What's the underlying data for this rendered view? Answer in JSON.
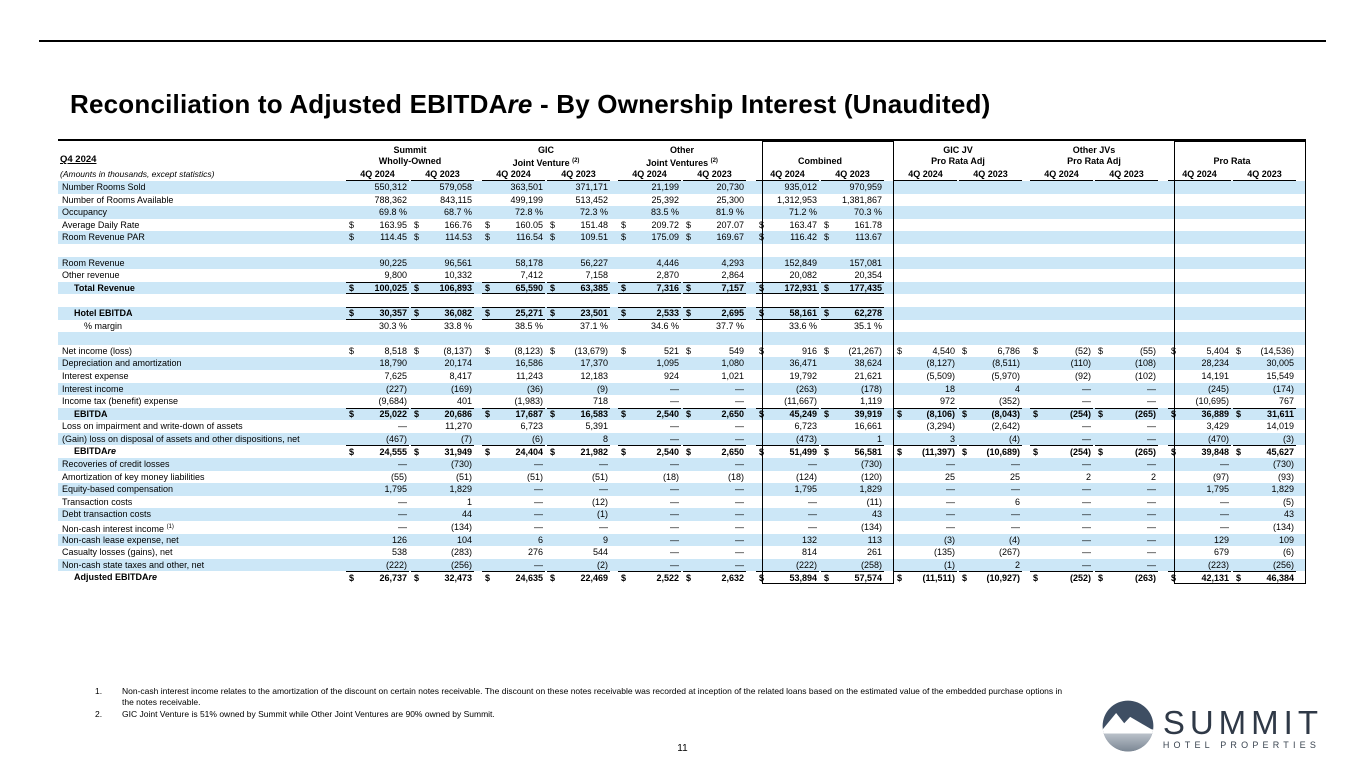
{
  "page": {
    "title": {
      "prefix": "Reconciliation to Adjusted EBITDA",
      "italic": "re",
      "suffix": " - By Ownership Interest (Unaudited)"
    },
    "page_number": "11"
  },
  "table": {
    "period_label": "Q4 2024",
    "subtitle": "(Amounts in thousands, except statistics)",
    "col_headers": [
      "4Q 2024",
      "4Q 2023"
    ],
    "groups": [
      {
        "line1": "Summit",
        "line2": "Wholly-Owned",
        "sup": "",
        "boxed": false
      },
      {
        "line1": "GIC",
        "line2": "Joint Venture",
        "sup": "(2)",
        "boxed": false
      },
      {
        "line1": "Other",
        "line2": "Joint Ventures",
        "sup": "(2)",
        "boxed": false
      },
      {
        "line1": "",
        "line2": "Combined",
        "sup": "",
        "boxed": true
      },
      {
        "line1": "GIC JV",
        "line2": "Pro Rata Adj",
        "sup": "",
        "boxed": false
      },
      {
        "line1": "Other JVs",
        "line2": "Pro Rata Adj",
        "sup": "",
        "boxed": false
      },
      {
        "line1": "",
        "line2": "Pro Rata",
        "sup": "",
        "boxed": true
      }
    ],
    "rows": [
      {
        "label": "Number Rooms Sold",
        "cells": [
          "550,312",
          "579,058",
          "363,501",
          "371,171",
          "21,199",
          "20,730",
          "935,012",
          "970,959",
          "",
          "",
          "",
          "",
          "",
          ""
        ]
      },
      {
        "label": "Number of Rooms Available",
        "cells": [
          "788,362",
          "843,115",
          "499,199",
          "513,452",
          "25,392",
          "25,300",
          "1,312,953",
          "1,381,867",
          "",
          "",
          "",
          "",
          "",
          ""
        ]
      },
      {
        "label": "Occupancy",
        "unit": "%",
        "cells": [
          "69.8",
          "68.7",
          "72.8",
          "72.3",
          "83.5",
          "81.9",
          "71.2",
          "70.3",
          "",
          "",
          "",
          "",
          "",
          ""
        ]
      },
      {
        "label": "Average Daily Rate",
        "unit": "$",
        "cells": [
          "163.95",
          "166.76",
          "160.05",
          "151.48",
          "209.72",
          "207.07",
          "163.47",
          "161.78",
          "",
          "",
          "",
          "",
          "",
          ""
        ]
      },
      {
        "label": "Room Revenue PAR",
        "unit": "$",
        "cells": [
          "114.45",
          "114.53",
          "116.54",
          "109.51",
          "175.09",
          "169.67",
          "116.42",
          "113.67",
          "",
          "",
          "",
          "",
          "",
          ""
        ]
      },
      {
        "blank": true
      },
      {
        "label": "Room Revenue",
        "cells": [
          "90,225",
          "96,561",
          "58,178",
          "56,227",
          "4,446",
          "4,293",
          "152,849",
          "157,081",
          "",
          "",
          "",
          "",
          "",
          ""
        ]
      },
      {
        "label": "Other revenue",
        "cells": [
          "9,800",
          "10,332",
          "7,412",
          "7,158",
          "2,870",
          "2,864",
          "20,082",
          "20,354",
          "",
          "",
          "",
          "",
          "",
          ""
        ]
      },
      {
        "label": "Total Revenue",
        "bold": true,
        "indent": 1,
        "unit": "$",
        "top": true,
        "bottom": true,
        "cells": [
          "100,025",
          "106,893",
          "65,590",
          "63,385",
          "7,316",
          "7,157",
          "172,931",
          "177,435",
          "",
          "",
          "",
          "",
          "",
          ""
        ]
      },
      {
        "blank": true
      },
      {
        "label": "Hotel EBITDA",
        "bold": true,
        "indent": 1,
        "unit": "$",
        "top": true,
        "bottom": true,
        "cells": [
          "30,357",
          "36,082",
          "25,271",
          "23,501",
          "2,533",
          "2,695",
          "58,161",
          "62,278",
          "",
          "",
          "",
          "",
          "",
          ""
        ]
      },
      {
        "label": "% margin",
        "indent": 2,
        "unit": "%",
        "cells": [
          "30.3",
          "33.8",
          "38.5",
          "37.1",
          "34.6",
          "37.7",
          "33.6",
          "35.1",
          "",
          "",
          "",
          "",
          "",
          ""
        ]
      },
      {
        "blank": true
      },
      {
        "label": "Net income (loss)",
        "unit": "$",
        "cells": [
          "8,518",
          "(8,137)",
          "(8,123)",
          "(13,679)",
          "521",
          "549",
          "916",
          "(21,267)",
          "4,540",
          "6,786",
          "(52)",
          "(55)",
          "5,404",
          "(14,536)"
        ]
      },
      {
        "label": "Depreciation and amortization",
        "cells": [
          "18,790",
          "20,174",
          "16,586",
          "17,370",
          "1,095",
          "1,080",
          "36,471",
          "38,624",
          "(8,127)",
          "(8,511)",
          "(110)",
          "(108)",
          "28,234",
          "30,005"
        ]
      },
      {
        "label": "Interest expense",
        "cells": [
          "7,625",
          "8,417",
          "11,243",
          "12,183",
          "924",
          "1,021",
          "19,792",
          "21,621",
          "(5,509)",
          "(5,970)",
          "(92)",
          "(102)",
          "14,191",
          "15,549"
        ]
      },
      {
        "label": "Interest income",
        "cells": [
          "(227)",
          "(169)",
          "(36)",
          "(9)",
          "—",
          "—",
          "(263)",
          "(178)",
          "18",
          "4",
          "—",
          "—",
          "(245)",
          "(174)"
        ]
      },
      {
        "label": "Income tax (benefit) expense",
        "cells": [
          "(9,684)",
          "401",
          "(1,983)",
          "718",
          "—",
          "—",
          "(11,667)",
          "1,119",
          "972",
          "(352)",
          "—",
          "—",
          "(10,695)",
          "767"
        ]
      },
      {
        "label": "EBITDA",
        "bold": true,
        "indent": 1,
        "unit": "$",
        "top": true,
        "cells": [
          "25,022",
          "20,686",
          "17,687",
          "16,583",
          "2,540",
          "2,650",
          "45,249",
          "39,919",
          "(8,106)",
          "(8,043)",
          "(254)",
          "(265)",
          "36,889",
          "31,611"
        ]
      },
      {
        "label": "Loss on impairment and write-down of assets",
        "cells": [
          "—",
          "11,270",
          "6,723",
          "5,391",
          "—",
          "—",
          "6,723",
          "16,661",
          "(3,294)",
          "(2,642)",
          "—",
          "—",
          "3,429",
          "14,019"
        ]
      },
      {
        "label": "(Gain) loss on disposal of assets and other dispositions, net",
        "cells": [
          "(467)",
          "(7)",
          "(6)",
          "8",
          "—",
          "—",
          "(473)",
          "1",
          "3",
          "(4)",
          "—",
          "—",
          "(470)",
          "(3)"
        ]
      },
      {
        "label": "EBITDA",
        "label_italic_suffix": "re",
        "bold": true,
        "indent": 1,
        "unit": "$",
        "top": true,
        "cells": [
          "24,555",
          "31,949",
          "24,404",
          "21,982",
          "2,540",
          "2,650",
          "51,499",
          "56,581",
          "(11,397)",
          "(10,689)",
          "(254)",
          "(265)",
          "39,848",
          "45,627"
        ]
      },
      {
        "label": "Recoveries of credit losses",
        "cells": [
          "—",
          "(730)",
          "—",
          "—",
          "—",
          "—",
          "—",
          "(730)",
          "—",
          "—",
          "—",
          "—",
          "—",
          "(730)"
        ]
      },
      {
        "label": "Amortization of key money liabilities",
        "cells": [
          "(55)",
          "(51)",
          "(51)",
          "(51)",
          "(18)",
          "(18)",
          "(124)",
          "(120)",
          "25",
          "25",
          "2",
          "2",
          "(97)",
          "(93)"
        ]
      },
      {
        "label": "Equity-based compensation",
        "cells": [
          "1,795",
          "1,829",
          "—",
          "—",
          "—",
          "—",
          "1,795",
          "1,829",
          "—",
          "—",
          "—",
          "—",
          "1,795",
          "1,829"
        ]
      },
      {
        "label": "Transaction costs",
        "cells": [
          "—",
          "1",
          "—",
          "(12)",
          "—",
          "—",
          "—",
          "(11)",
          "—",
          "6",
          "—",
          "—",
          "—",
          "(5)"
        ]
      },
      {
        "label": "Debt transaction costs",
        "cells": [
          "—",
          "44",
          "—",
          "(1)",
          "—",
          "—",
          "—",
          "43",
          "—",
          "—",
          "—",
          "—",
          "—",
          "43"
        ]
      },
      {
        "label": "Non-cash interest income",
        "label_sup": "(1)",
        "cells": [
          "—",
          "(134)",
          "—",
          "—",
          "—",
          "—",
          "—",
          "(134)",
          "—",
          "—",
          "—",
          "—",
          "—",
          "(134)"
        ]
      },
      {
        "label": "Non-cash lease expense, net",
        "cells": [
          "126",
          "104",
          "6",
          "9",
          "—",
          "—",
          "132",
          "113",
          "(3)",
          "(4)",
          "—",
          "—",
          "129",
          "109"
        ]
      },
      {
        "label": "Casualty losses (gains), net",
        "cells": [
          "538",
          "(283)",
          "276",
          "544",
          "—",
          "—",
          "814",
          "261",
          "(135)",
          "(267)",
          "—",
          "—",
          "679",
          "(6)"
        ]
      },
      {
        "label": "Non-cash state taxes and other, net",
        "cells": [
          "(222)",
          "(256)",
          "—",
          "(2)",
          "—",
          "—",
          "(222)",
          "(258)",
          "(1)",
          "2",
          "—",
          "—",
          "(223)",
          "(256)"
        ]
      },
      {
        "label": "Adjusted EBITDA",
        "label_italic_suffix": "re",
        "bold": true,
        "indent": 1,
        "unit": "$",
        "top": true,
        "cells": [
          "26,737",
          "32,473",
          "24,635",
          "22,469",
          "2,522",
          "2,632",
          "53,894",
          "57,574",
          "(11,511)",
          "(10,927)",
          "(252)",
          "(263)",
          "42,131",
          "46,384"
        ]
      }
    ]
  },
  "footnotes": [
    {
      "num": "1.",
      "text": "Non-cash interest income relates to the amortization of the discount on certain notes receivable. The discount on these notes receivable was recorded at inception of the related loans based on the estimated value of the embedded purchase options in the notes receivable."
    },
    {
      "num": "2.",
      "text": "GIC Joint Venture is 51% owned by Summit while Other Joint Ventures are 90% owned by Summit."
    }
  ],
  "logo": {
    "name": "SUMMIT",
    "tagline": "HOTEL PROPERTIES"
  },
  "colors": {
    "stripe_blue": "#cce7f7",
    "logo_navy": "#3e4e63",
    "logo_silver": "#8a95a3"
  }
}
